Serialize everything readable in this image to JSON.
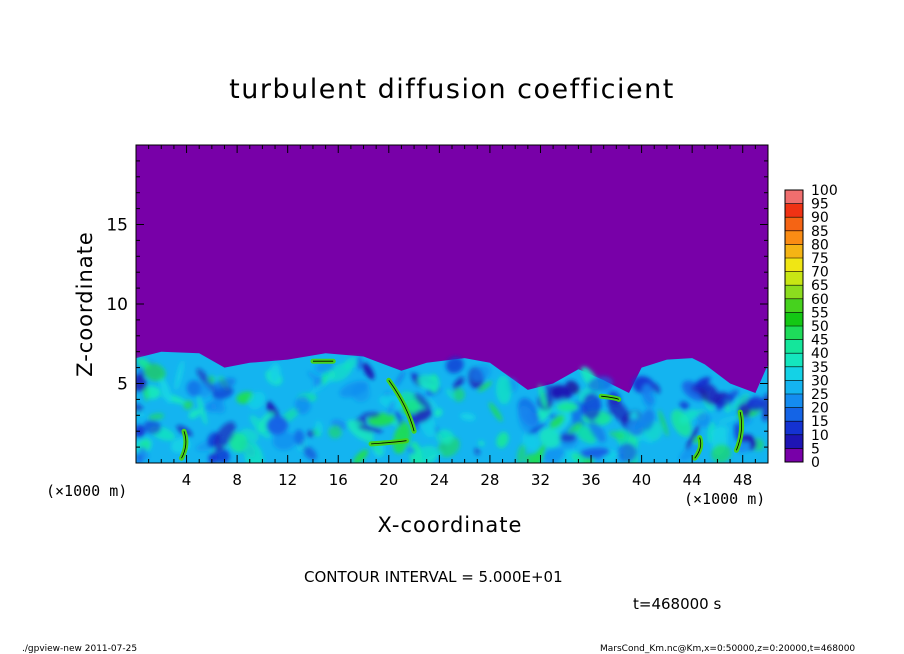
{
  "chart_data": {
    "type": "heatmap",
    "title": "turbulent diffusion coefficient",
    "xlabel": "X-coordinate",
    "ylabel": "Z-coordinate",
    "x_unit_label": "(×1000 m)",
    "xlim": [
      0,
      50
    ],
    "ylim": [
      0,
      20
    ],
    "x_ticks": [
      4,
      8,
      12,
      16,
      20,
      24,
      28,
      32,
      36,
      40,
      44,
      48
    ],
    "y_ticks": [
      5,
      10,
      15
    ],
    "colorbar": {
      "levels": [
        0,
        5,
        10,
        15,
        20,
        25,
        30,
        35,
        40,
        45,
        50,
        55,
        60,
        65,
        70,
        75,
        80,
        85,
        90,
        95,
        100
      ],
      "colors": [
        "#7800a8",
        "#1e14b4",
        "#1432d2",
        "#1464e6",
        "#148cf0",
        "#14b4f0",
        "#14d2e6",
        "#14e6be",
        "#14e69b",
        "#1edc5a",
        "#14c814",
        "#46d21e",
        "#8cdc1e",
        "#c8e614",
        "#f0e614",
        "#f5b414",
        "#fa8c14",
        "#f56414",
        "#f03214",
        "#f06e6e"
      ]
    },
    "turbulent_layer_top_profile": [
      {
        "x": 0,
        "z": 6.6
      },
      {
        "x": 2,
        "z": 7.0
      },
      {
        "x": 5,
        "z": 6.9
      },
      {
        "x": 7,
        "z": 6.0
      },
      {
        "x": 9,
        "z": 6.3
      },
      {
        "x": 12,
        "z": 6.5
      },
      {
        "x": 15,
        "z": 6.9
      },
      {
        "x": 18,
        "z": 6.7
      },
      {
        "x": 21,
        "z": 5.8
      },
      {
        "x": 23,
        "z": 6.3
      },
      {
        "x": 26,
        "z": 6.6
      },
      {
        "x": 28,
        "z": 6.3
      },
      {
        "x": 31,
        "z": 4.6
      },
      {
        "x": 33,
        "z": 5.0
      },
      {
        "x": 35,
        "z": 5.9
      },
      {
        "x": 37,
        "z": 5.2
      },
      {
        "x": 39,
        "z": 4.4
      },
      {
        "x": 40,
        "z": 6.0
      },
      {
        "x": 42,
        "z": 6.5
      },
      {
        "x": 44,
        "z": 6.6
      },
      {
        "x": 45,
        "z": 6.2
      },
      {
        "x": 47,
        "z": 5.0
      },
      {
        "x": 49,
        "z": 4.4
      },
      {
        "x": 50,
        "z": 6.2
      }
    ]
  },
  "contour_interval_text": "CONTOUR INTERVAL = 5.000E+01",
  "time_text": "t=468000  s",
  "footer_left": "./gpview-new   2011-07-25",
  "footer_right": "MarsCond_Km.nc@Km,x=0:50000,z=0:20000,t=468000"
}
